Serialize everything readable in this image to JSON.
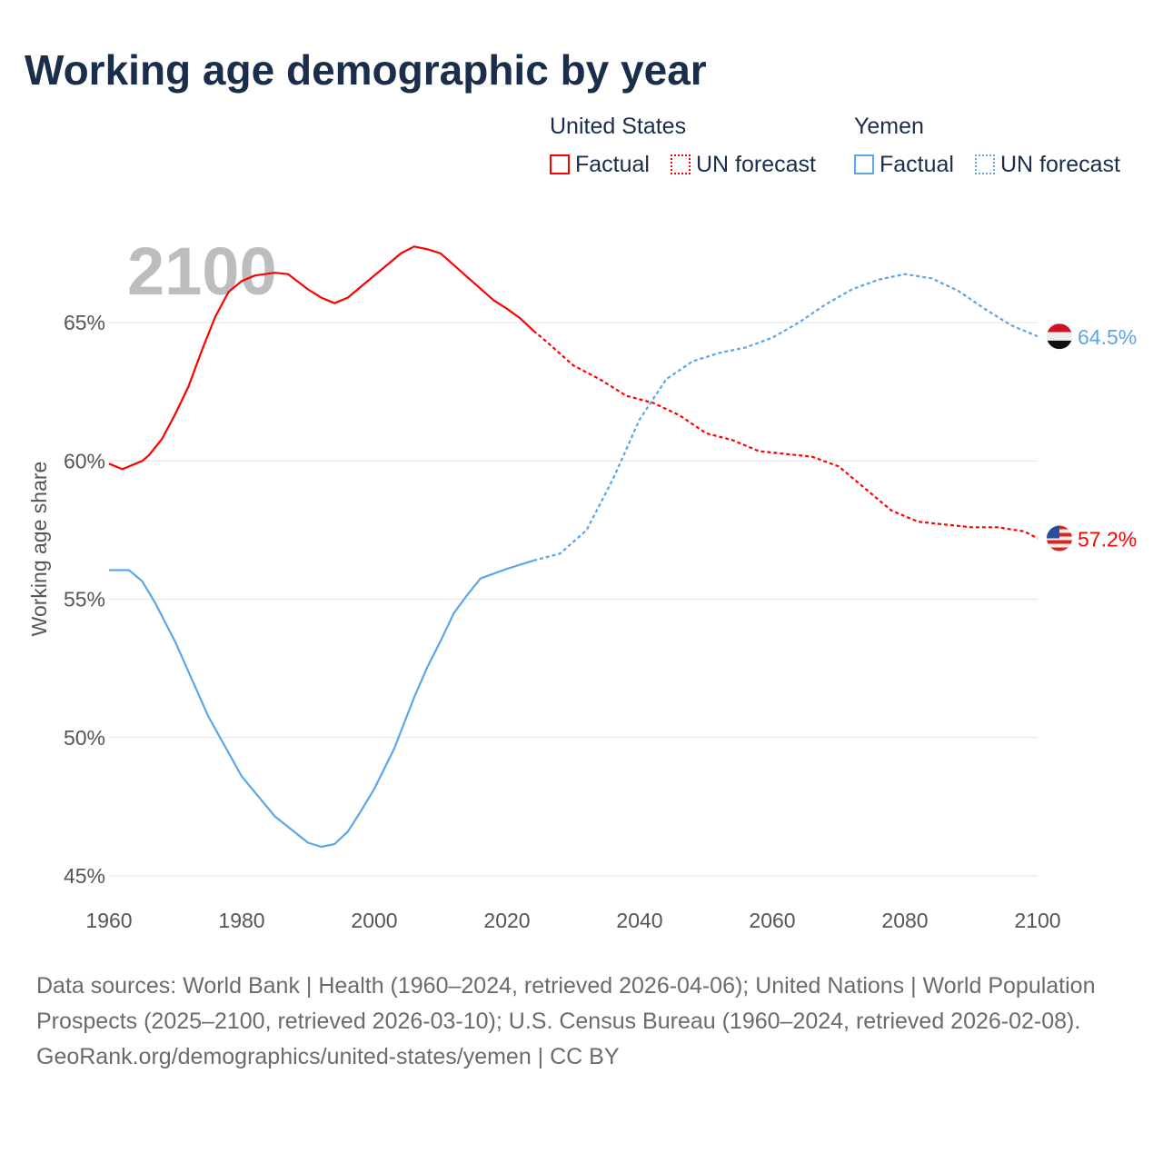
{
  "title": "Working age demographic by year",
  "legend": {
    "us_title": "United States",
    "ye_title": "Yemen",
    "factual": "Factual",
    "forecast": "UN forecast"
  },
  "colors": {
    "us": "#ff0000",
    "ye": "#5ba6ea"
  },
  "year_overlay": "2100",
  "end_labels": {
    "ye": "64.5%",
    "us": "57.2%"
  },
  "source": {
    "line": "Data sources: World Bank | Health (1960–2024, retrieved 2026-04-06); United Nations | World Population Prospects (2025–2100, retrieved 2026-03-10); U.S. Census Bureau (1960–2024, retrieved 2026-02-08).",
    "url": "GeoRank.org/demographics/united-states/yemen | CC BY"
  },
  "chart_data": {
    "type": "line",
    "title": "Working age demographic by year",
    "xlabel": "",
    "ylabel": "Working age share",
    "xlim": [
      1960,
      2100
    ],
    "ylim": [
      45,
      68.1
    ],
    "xticks": [
      1960,
      1980,
      2000,
      2020,
      2040,
      2060,
      2080,
      2100
    ],
    "xtick_labels": [
      "1960",
      "1980",
      "2000",
      "2020",
      "2040",
      "2060",
      "2080",
      "2100"
    ],
    "yticks": [
      45,
      50,
      55,
      60,
      65
    ],
    "ytick_labels": [
      "45%",
      "50%",
      "55%",
      "60%",
      "65%"
    ],
    "forecast_start": 2024,
    "series": [
      {
        "name": "United States",
        "x": [
          1960,
          1962,
          1965,
          1966,
          1968,
          1970,
          1972,
          1974,
          1976,
          1978,
          1980,
          1982,
          1985,
          1987,
          1990,
          1992,
          1994,
          1996,
          1998,
          2000,
          2002,
          2004,
          2006,
          2008,
          2010,
          2014,
          2018,
          2020,
          2022,
          2024,
          2026,
          2030,
          2034,
          2038,
          2042,
          2046,
          2050,
          2054,
          2058,
          2062,
          2066,
          2070,
          2074,
          2078,
          2082,
          2086,
          2090,
          2094,
          2098,
          2100
        ],
        "y": [
          59.9,
          59.7,
          60.0,
          60.2,
          60.8,
          61.7,
          62.7,
          64.0,
          65.2,
          66.1,
          66.5,
          66.7,
          66.8,
          66.75,
          66.2,
          65.9,
          65.7,
          65.9,
          66.3,
          66.7,
          67.1,
          67.5,
          67.75,
          67.65,
          67.5,
          66.65,
          65.8,
          65.5,
          65.15,
          64.7,
          64.3,
          63.45,
          62.95,
          62.35,
          62.1,
          61.65,
          61.0,
          60.75,
          60.35,
          60.25,
          60.15,
          59.8,
          59.0,
          58.2,
          57.8,
          57.7,
          57.6,
          57.6,
          57.45,
          57.2
        ]
      },
      {
        "name": "Yemen",
        "x": [
          1960,
          1963,
          1965,
          1967,
          1970,
          1975,
          1980,
          1985,
          1990,
          1992,
          1994,
          1996,
          1998,
          2000,
          2003,
          2006,
          2008,
          2010,
          2012,
          2014,
          2016,
          2020,
          2024,
          2028,
          2032,
          2036,
          2040,
          2044,
          2048,
          2052,
          2056,
          2060,
          2064,
          2068,
          2072,
          2076,
          2080,
          2084,
          2088,
          2092,
          2096,
          2100
        ],
        "y": [
          56.05,
          56.05,
          55.65,
          54.85,
          53.45,
          50.75,
          48.6,
          47.15,
          46.2,
          46.05,
          46.15,
          46.6,
          47.35,
          48.15,
          49.6,
          51.45,
          52.55,
          53.5,
          54.5,
          55.15,
          55.75,
          56.1,
          56.4,
          56.65,
          57.5,
          59.35,
          61.5,
          62.95,
          63.6,
          63.9,
          64.1,
          64.45,
          65.0,
          65.65,
          66.2,
          66.55,
          66.75,
          66.6,
          66.15,
          65.5,
          64.9,
          64.5
        ]
      }
    ]
  }
}
